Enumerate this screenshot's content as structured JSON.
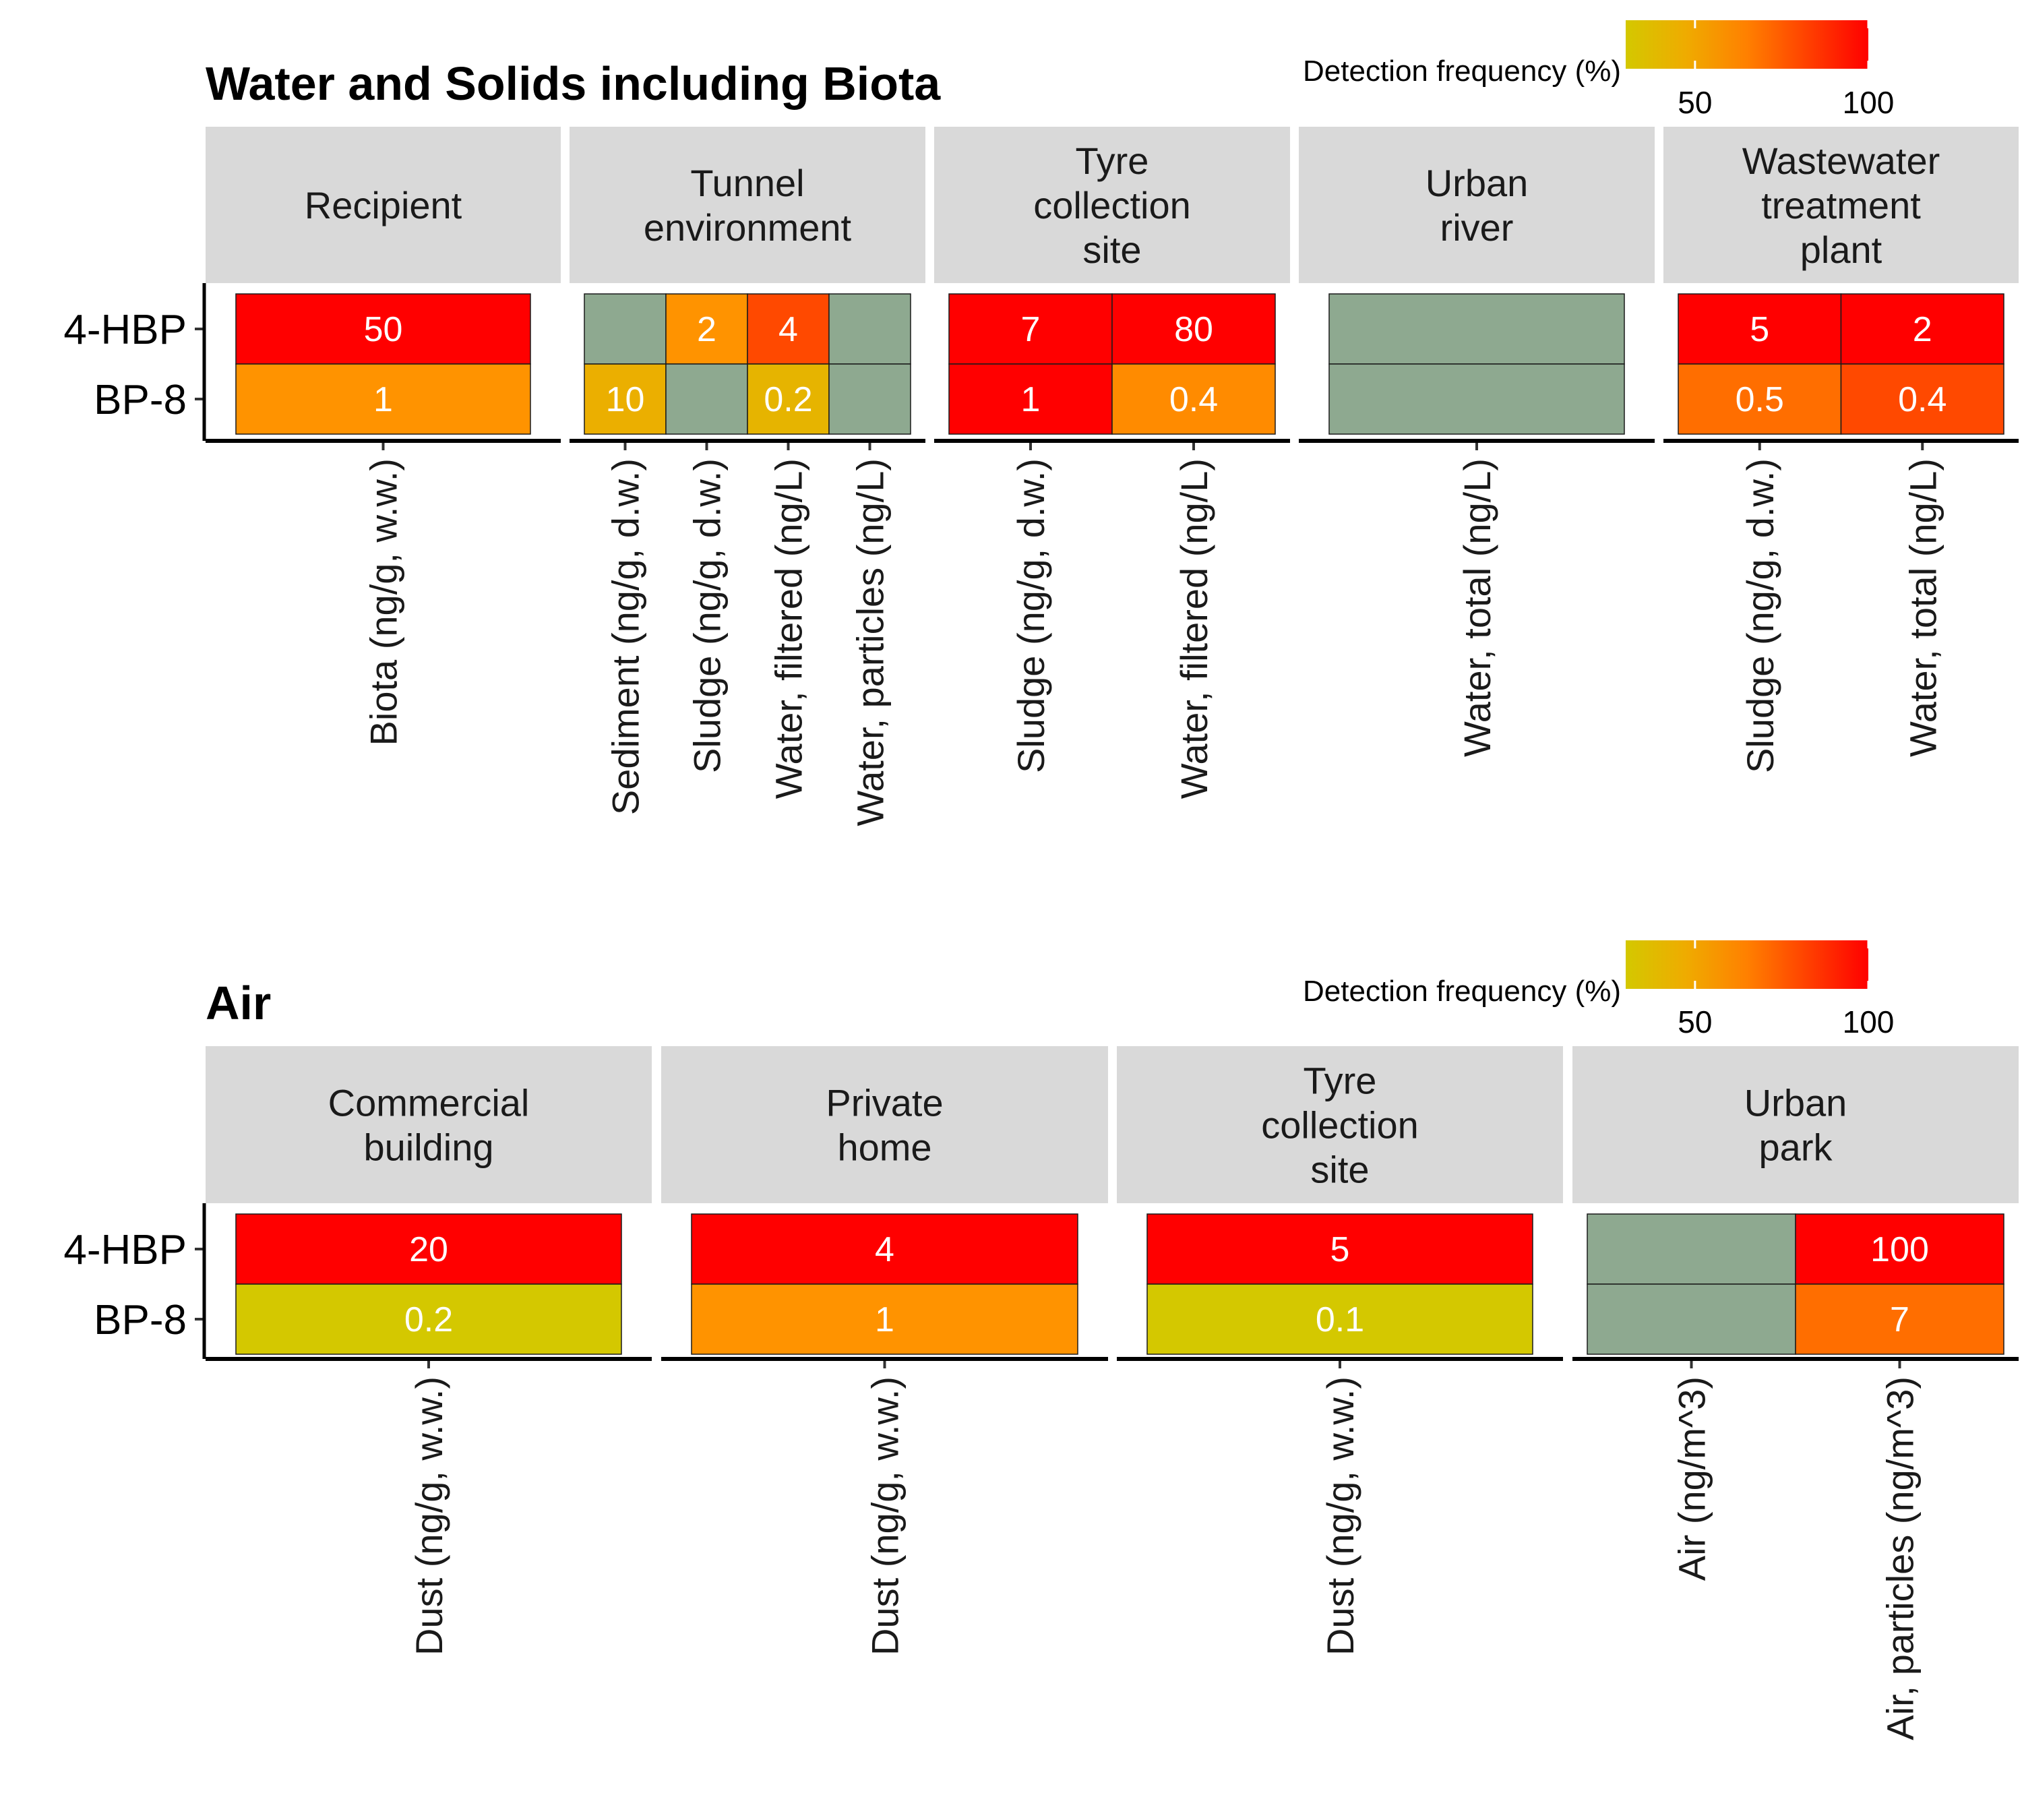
{
  "chart_data": [
    {
      "type": "heatmap",
      "title": "Water and Solids including Biota",
      "rows": [
        "4-HBP",
        "BP-8"
      ],
      "legend": {
        "title": "Detection frequency (%)",
        "ticks": [
          50,
          100
        ],
        "range": [
          30,
          100
        ],
        "position": "top-right"
      },
      "colors": {
        "low": "#d4c800",
        "mid": "#ff9a00",
        "high": "#ff0000",
        "not_detected": "#8ea990"
      },
      "panels": [
        {
          "name": "Recipient",
          "strip": [
            "Recipient"
          ],
          "columns": [
            "Biota (ng/g, w.w.)"
          ],
          "cells": [
            [
              {
                "label": "50",
                "freq": 100
              }
            ],
            [
              {
                "label": "1",
                "freq": 60
              }
            ]
          ]
        },
        {
          "name": "Tunnel environment",
          "strip": [
            "Tunnel",
            "environment"
          ],
          "columns": [
            "Sediment (ng/g, d.w.)",
            "Sludge (ng/g, d.w.)",
            "Water, filtered (ng/L)",
            "Water, particles (ng/L)"
          ],
          "cells": [
            [
              null,
              {
                "label": "2",
                "freq": 60
              },
              {
                "label": "4",
                "freq": 80
              },
              null
            ],
            [
              {
                "label": "10",
                "freq": 45
              },
              null,
              {
                "label": "0.2",
                "freq": 42
              },
              null
            ]
          ]
        },
        {
          "name": "Tyre collection site",
          "strip": [
            "Tyre",
            "collection",
            "site"
          ],
          "columns": [
            "Sludge (ng/g, d.w.)",
            "Water, filtered (ng/L)"
          ],
          "cells": [
            [
              {
                "label": "7",
                "freq": 100
              },
              {
                "label": "80",
                "freq": 100
              }
            ],
            [
              {
                "label": "1",
                "freq": 100
              },
              {
                "label": "0.4",
                "freq": 62
              }
            ]
          ]
        },
        {
          "name": "Urban river",
          "strip": [
            "Urban",
            "river"
          ],
          "columns": [
            "Water, total (ng/L)"
          ],
          "cells": [
            [
              null
            ],
            [
              null
            ]
          ]
        },
        {
          "name": "Wastewater treatment plant",
          "strip": [
            "Wastewater",
            "treatment",
            "plant"
          ],
          "columns": [
            "Sludge (ng/g, d.w.)",
            "Water, total (ng/L)"
          ],
          "cells": [
            [
              {
                "label": "5",
                "freq": 100
              },
              {
                "label": "2",
                "freq": 100
              }
            ],
            [
              {
                "label": "0.5",
                "freq": 70
              },
              {
                "label": "0.4",
                "freq": 80
              }
            ]
          ]
        }
      ]
    },
    {
      "type": "heatmap",
      "title": "Air",
      "rows": [
        "4-HBP",
        "BP-8"
      ],
      "legend": {
        "title": "Detection frequency (%)",
        "ticks": [
          50,
          100
        ],
        "range": [
          30,
          100
        ],
        "position": "top-right"
      },
      "colors": {
        "low": "#d4c800",
        "mid": "#ff9a00",
        "high": "#ff0000",
        "not_detected": "#8ea990"
      },
      "panels": [
        {
          "name": "Commercial building",
          "strip": [
            "Commercial",
            "building"
          ],
          "columns": [
            "Dust (ng/g, w.w.)"
          ],
          "cells": [
            [
              {
                "label": "20",
                "freq": 100
              }
            ],
            [
              {
                "label": "0.2",
                "freq": 30
              }
            ]
          ]
        },
        {
          "name": "Private home",
          "strip": [
            "Private",
            "home"
          ],
          "columns": [
            "Dust (ng/g, w.w.)"
          ],
          "cells": [
            [
              {
                "label": "4",
                "freq": 100
              }
            ],
            [
              {
                "label": "1",
                "freq": 60
              }
            ]
          ]
        },
        {
          "name": "Tyre collection site",
          "strip": [
            "Tyre",
            "collection",
            "site"
          ],
          "columns": [
            "Dust (ng/g, w.w.)"
          ],
          "cells": [
            [
              {
                "label": "5",
                "freq": 100
              }
            ],
            [
              {
                "label": "0.1",
                "freq": 30
              }
            ]
          ]
        },
        {
          "name": "Urban park",
          "strip": [
            "Urban",
            "park"
          ],
          "columns": [
            "Air (ng/m^3)",
            "Air, particles (ng/m^3)"
          ],
          "cells": [
            [
              null,
              {
                "label": "100",
                "freq": 100
              }
            ],
            [
              null,
              {
                "label": "7",
                "freq": 70
              }
            ]
          ]
        }
      ]
    }
  ]
}
